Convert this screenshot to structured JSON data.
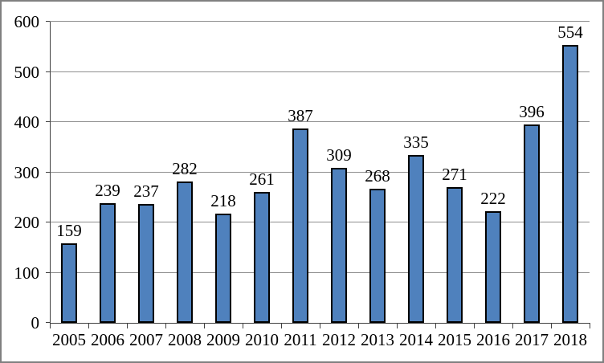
{
  "chart_data": {
    "type": "bar",
    "title": "",
    "xlabel": "",
    "ylabel": "",
    "categories": [
      "2005",
      "2006",
      "2007",
      "2008",
      "2009",
      "2010",
      "2011",
      "2012",
      "2013",
      "2014",
      "2015",
      "2016",
      "2017",
      "2018"
    ],
    "values": [
      159,
      239,
      237,
      282,
      218,
      261,
      387,
      309,
      268,
      335,
      271,
      222,
      396,
      554
    ],
    "data_labels": [
      159,
      239,
      237,
      282,
      218,
      261,
      387,
      309,
      268,
      335,
      271,
      222,
      396,
      554
    ],
    "ylim": [
      0,
      600
    ],
    "yticks": [
      0,
      100,
      200,
      300,
      400,
      500,
      600
    ],
    "grid": true,
    "legend": false,
    "colors": {
      "bar_fill": "#4F81BD",
      "bar_border": "#000000",
      "gridline": "#8E8E8E",
      "axis": "#404040",
      "text": "#000000",
      "frame_border": "#808080",
      "background": "#FFFFFF"
    }
  }
}
